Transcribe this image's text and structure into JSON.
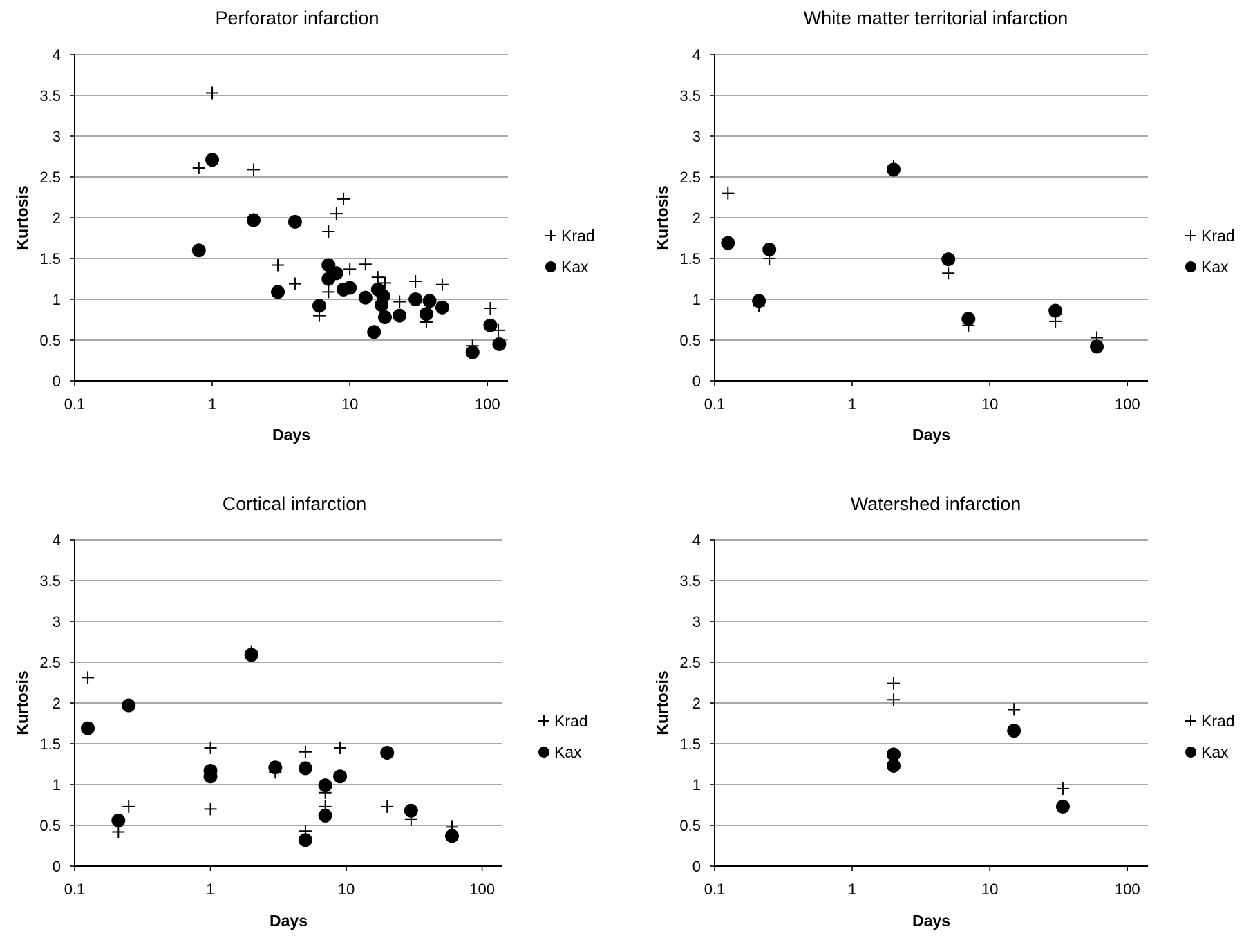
{
  "chart_data": [
    {
      "type": "scatter",
      "title": "Perforator infarction",
      "xlabel": "Days",
      "ylabel": "Kurtosis",
      "x_scale": "log",
      "xlim": [
        0.1,
        130
      ],
      "ylim": [
        0,
        4
      ],
      "x_ticks": [
        "0.1",
        "1",
        "10",
        "100"
      ],
      "y_ticks": [
        "0",
        "0.5",
        "1",
        "1.5",
        "2",
        "2.5",
        "3",
        "3.5",
        "4"
      ],
      "grid": "horizontal",
      "legend_position": "right",
      "series": [
        {
          "name": "Krad",
          "marker": "plus",
          "x": [
            0.8,
            1,
            2,
            3,
            4,
            6,
            7,
            7,
            8,
            9,
            10,
            13,
            16,
            18,
            23,
            30,
            36,
            47,
            78,
            105,
            120
          ],
          "y": [
            2.61,
            3.53,
            2.59,
            1.42,
            1.19,
            0.8,
            1.83,
            1.09,
            2.05,
            2.23,
            1.37,
            1.43,
            1.27,
            1.2,
            0.97,
            1.22,
            0.72,
            1.18,
            0.43,
            0.89,
            0.62
          ]
        },
        {
          "name": "Kax",
          "marker": "circle",
          "x": [
            0.8,
            1,
            2,
            3,
            4,
            6,
            7,
            7,
            8,
            9,
            10,
            13,
            15,
            16,
            17,
            17.5,
            18,
            23,
            30,
            36,
            38,
            47,
            78,
            105,
            122
          ],
          "y": [
            1.6,
            2.71,
            1.97,
            1.09,
            1.95,
            0.92,
            1.42,
            1.25,
            1.32,
            1.12,
            1.14,
            1.02,
            0.6,
            1.12,
            0.93,
            1.04,
            0.78,
            0.8,
            1.0,
            0.82,
            0.98,
            0.9,
            0.35,
            0.68,
            0.45
          ]
        }
      ]
    },
    {
      "type": "scatter",
      "title": "White matter territorial infarction",
      "xlabel": "Days",
      "ylabel": "Kurtosis",
      "x_scale": "log",
      "xlim": [
        0.1,
        130
      ],
      "ylim": [
        0,
        4
      ],
      "x_ticks": [
        "0.1",
        "1",
        "10",
        "100"
      ],
      "y_ticks": [
        "0",
        "0.5",
        "1",
        "1.5",
        "2",
        "2.5",
        "3",
        "3.5",
        "4"
      ],
      "grid": "horizontal",
      "legend_position": "right",
      "series": [
        {
          "name": "Krad",
          "marker": "plus",
          "x": [
            0.125,
            0.21,
            0.25,
            2,
            5,
            7,
            30,
            60
          ],
          "y": [
            2.3,
            0.92,
            1.5,
            2.63,
            1.32,
            0.68,
            0.73,
            0.53
          ]
        },
        {
          "name": "Kax",
          "marker": "circle",
          "x": [
            0.125,
            0.21,
            0.25,
            2,
            5,
            7,
            30,
            60
          ],
          "y": [
            1.69,
            0.98,
            1.61,
            2.59,
            1.49,
            0.76,
            0.86,
            0.42
          ]
        }
      ]
    },
    {
      "type": "scatter",
      "title": "Cortical infarction",
      "xlabel": "Days",
      "ylabel": "Kurtosis",
      "x_scale": "log",
      "xlim": [
        0.1,
        130
      ],
      "ylim": [
        0,
        4
      ],
      "x_ticks": [
        "0.1",
        "1",
        "10",
        "100"
      ],
      "y_ticks": [
        "0",
        "0.5",
        "1",
        "1.5",
        "2",
        "2.5",
        "3",
        "3.5",
        "4"
      ],
      "grid": "horizontal",
      "legend_position": "right",
      "series": [
        {
          "name": "Krad",
          "marker": "plus",
          "x": [
            0.125,
            0.21,
            0.25,
            1,
            1,
            2,
            3,
            5,
            5,
            7,
            7,
            9,
            20,
            30,
            60
          ],
          "y": [
            2.31,
            0.42,
            0.73,
            1.45,
            0.7,
            2.63,
            1.15,
            1.4,
            0.43,
            0.9,
            0.73,
            1.45,
            0.73,
            0.57,
            0.48
          ]
        },
        {
          "name": "Kax",
          "marker": "circle",
          "x": [
            0.125,
            0.21,
            0.25,
            1,
            1,
            2,
            3,
            5,
            5,
            7,
            7,
            9,
            20,
            30,
            60
          ],
          "y": [
            1.69,
            0.56,
            1.97,
            1.17,
            1.1,
            2.59,
            1.21,
            1.2,
            0.32,
            0.99,
            0.62,
            1.1,
            1.39,
            0.68,
            0.37
          ]
        }
      ]
    },
    {
      "type": "scatter",
      "title": "Watershed infarction",
      "xlabel": "Days",
      "ylabel": "Kurtosis",
      "x_scale": "log",
      "xlim": [
        0.1,
        130
      ],
      "ylim": [
        0,
        4
      ],
      "x_ticks": [
        "0.1",
        "1",
        "10",
        "100"
      ],
      "y_ticks": [
        "0",
        "0.5",
        "1",
        "1.5",
        "2",
        "2.5",
        "3",
        "3.5",
        "4"
      ],
      "grid": "horizontal",
      "legend_position": "right",
      "series": [
        {
          "name": "Krad",
          "marker": "plus",
          "x": [
            2,
            2,
            15,
            34
          ],
          "y": [
            2.24,
            2.04,
            1.92,
            0.95
          ]
        },
        {
          "name": "Kax",
          "marker": "circle",
          "x": [
            2,
            2,
            15,
            34
          ],
          "y": [
            1.37,
            1.23,
            1.66,
            0.73
          ]
        }
      ]
    }
  ]
}
